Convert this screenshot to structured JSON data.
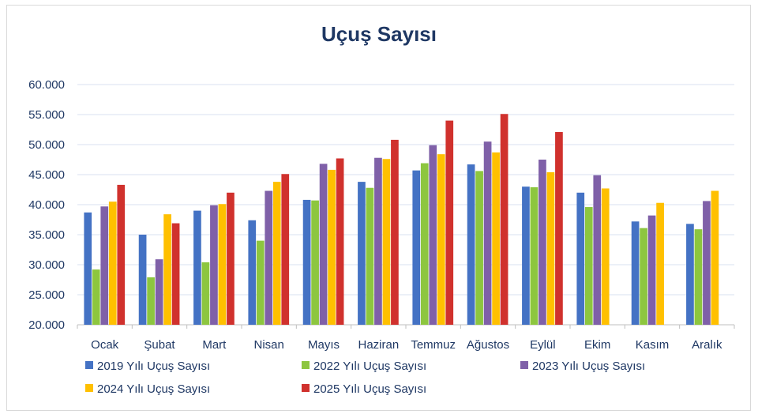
{
  "chart_data": {
    "type": "bar",
    "title": "Uçuş Sayısı",
    "xlabel": "",
    "ylabel": "",
    "ylim": [
      20000,
      60000
    ],
    "yticks": [
      20000,
      25000,
      30000,
      35000,
      40000,
      45000,
      50000,
      55000,
      60000
    ],
    "ytick_labels": [
      "20.000",
      "25.000",
      "30.000",
      "35.000",
      "40.000",
      "45.000",
      "50.000",
      "55.000",
      "60.000"
    ],
    "grid": true,
    "legend": "bottom",
    "categories": [
      "Ocak",
      "Şubat",
      "Mart",
      "Nisan",
      "Mayıs",
      "Haziran",
      "Temmuz",
      "Ağustos",
      "Eylül",
      "Ekim",
      "Kasım",
      "Aralık"
    ],
    "series": [
      {
        "name": "2019 Yılı Uçuş Sayısı",
        "color": "#4472c4",
        "values": [
          38700,
          35000,
          39000,
          37400,
          40800,
          43800,
          45700,
          46700,
          43000,
          42000,
          37200,
          36800
        ]
      },
      {
        "name": "2022 Yılı Uçuş Sayısı",
        "color": "#8dc63f",
        "values": [
          29200,
          27900,
          30400,
          34000,
          40700,
          42800,
          46900,
          45600,
          42900,
          39600,
          36100,
          35900
        ]
      },
      {
        "name": "2023 Yılı Uçuş Sayısı",
        "color": "#7f60a8",
        "values": [
          39700,
          30900,
          39900,
          42300,
          46800,
          47800,
          49900,
          50500,
          47500,
          44900,
          38200,
          40600
        ]
      },
      {
        "name": "2024 Yılı Uçuş Sayısı",
        "color": "#ffc000",
        "values": [
          40500,
          38400,
          40100,
          43800,
          45800,
          47600,
          48400,
          48700,
          45400,
          42700,
          40300,
          42300
        ]
      },
      {
        "name": "2025 Yılı Uçuş Sayısı",
        "color": "#d0312d",
        "values": [
          43300,
          36900,
          42000,
          45100,
          47700,
          50800,
          54000,
          55100,
          52100,
          null,
          null,
          null
        ]
      }
    ]
  }
}
